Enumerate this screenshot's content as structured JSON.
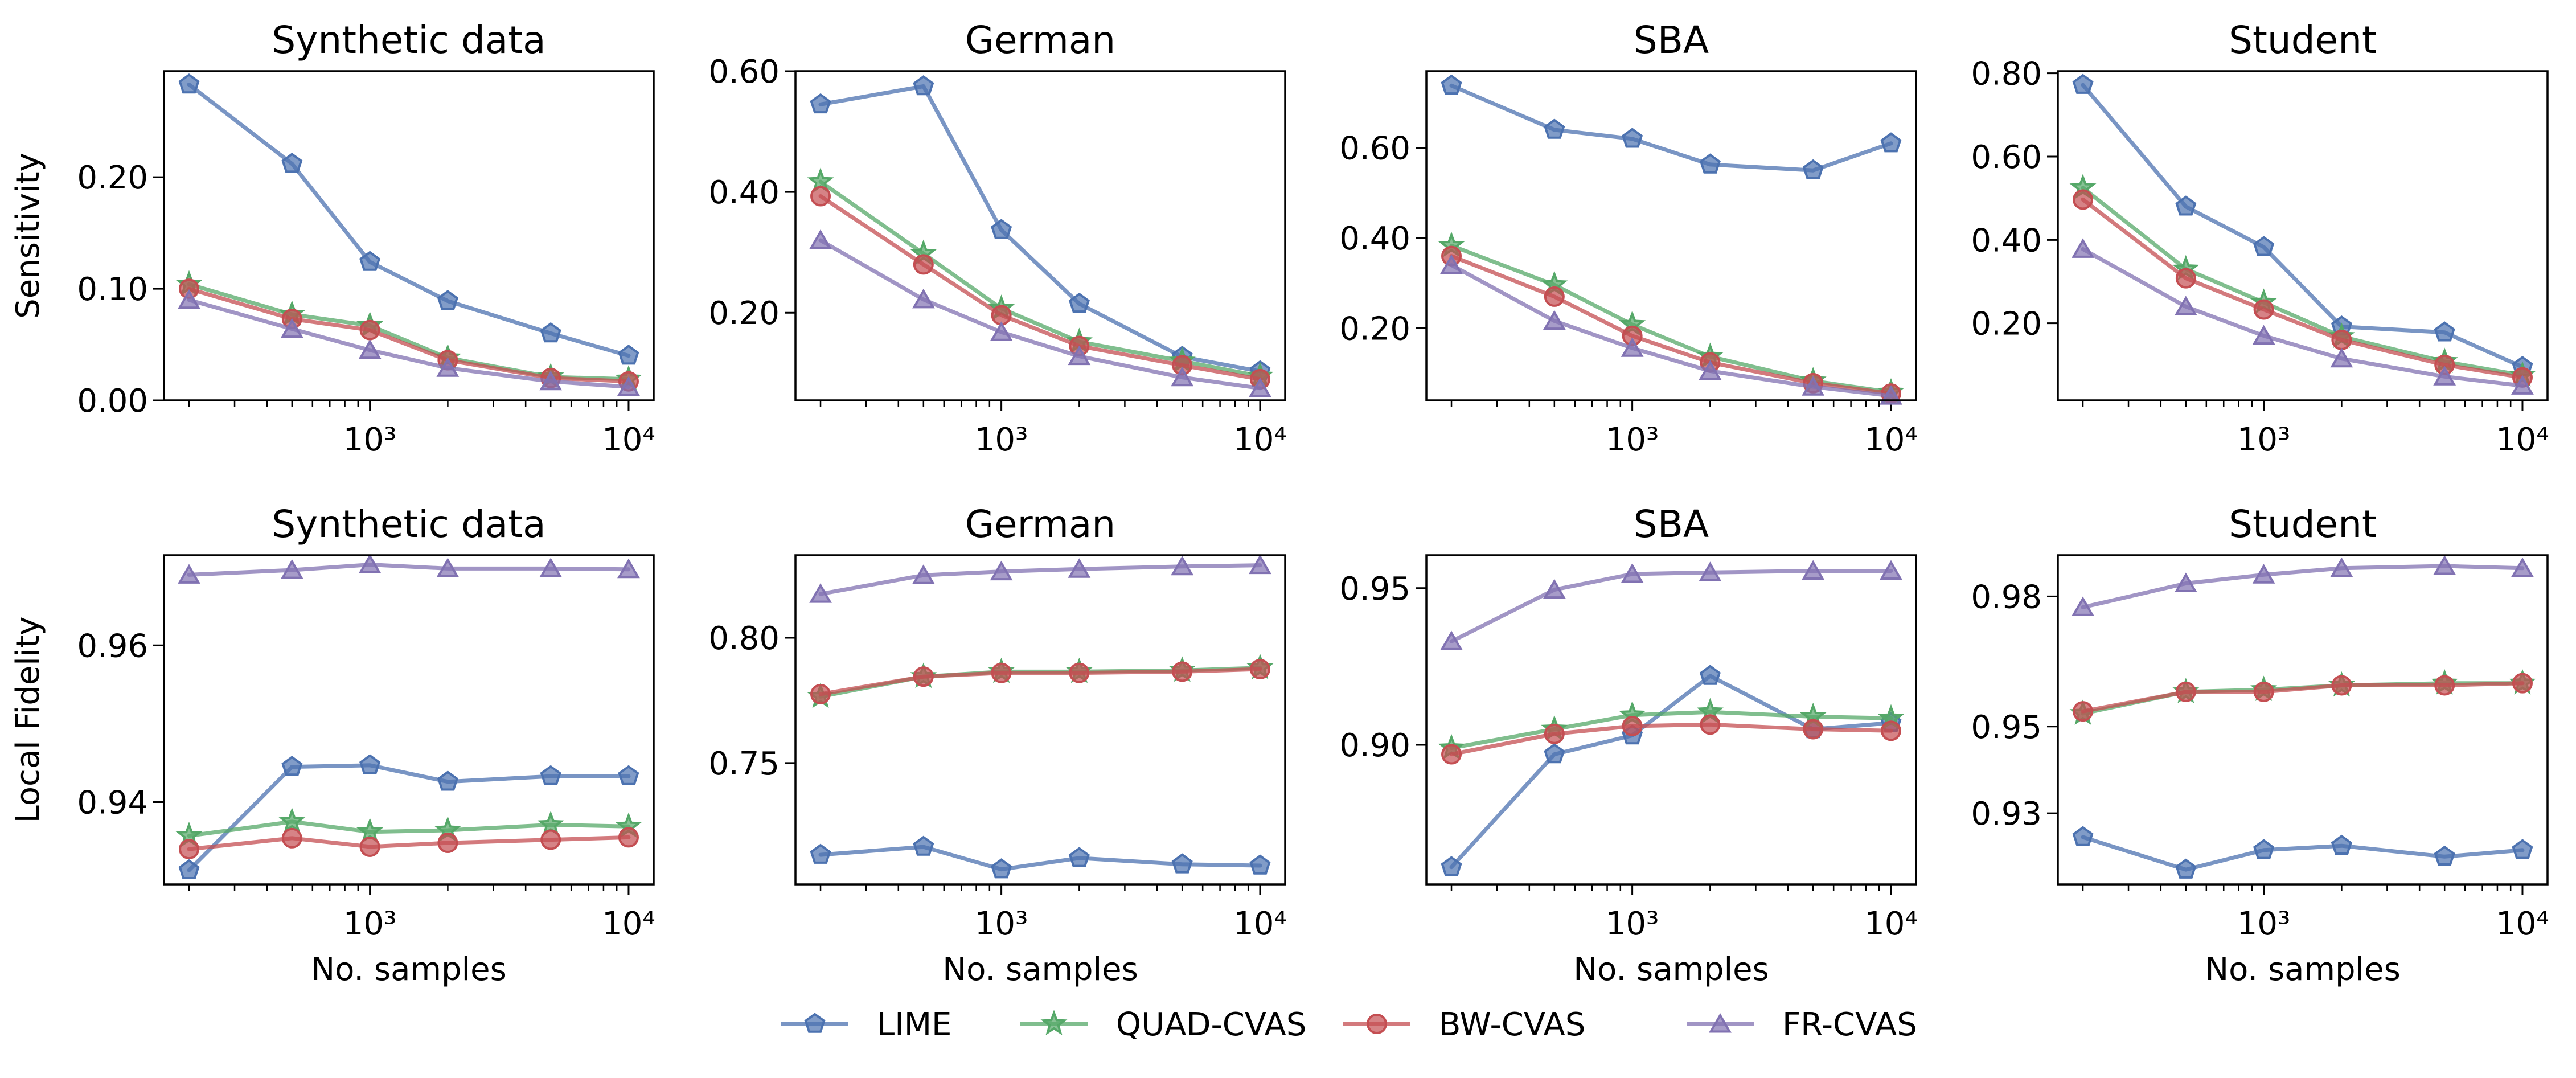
{
  "legend": {
    "entries": [
      {
        "name": "LIME",
        "color": "#4C72B0",
        "marker": "pentagon"
      },
      {
        "name": "QUAD-CVAS",
        "color": "#55A868",
        "marker": "star"
      },
      {
        "name": "BW-CVAS",
        "color": "#C44E52",
        "marker": "circle"
      },
      {
        "name": "FR-CVAS",
        "color": "#8172B2",
        "marker": "triangle"
      }
    ]
  },
  "chart_data": [
    {
      "type": "line",
      "title": "Synthetic data",
      "ylabel": "Sensitivity",
      "xlabel": "",
      "xscale": "log",
      "x": [
        200,
        500,
        1000,
        2000,
        5000,
        10000
      ],
      "xlim": [
        160,
        12500
      ],
      "ylim": [
        0.0,
        0.295
      ],
      "yticks": [
        0.0,
        0.1,
        0.2
      ],
      "ytick_labels": [
        "0.00",
        "0.10",
        "0.20"
      ],
      "xticks": [
        1000,
        10000
      ],
      "xtick_labels": [
        "10³",
        "10⁴"
      ],
      "series": [
        {
          "name": "LIME",
          "values": [
            0.283,
            0.212,
            0.124,
            0.089,
            0.06,
            0.04
          ]
        },
        {
          "name": "QUAD-CVAS",
          "values": [
            0.104,
            0.077,
            0.067,
            0.038,
            0.021,
            0.019
          ]
        },
        {
          "name": "BW-CVAS",
          "values": [
            0.1,
            0.073,
            0.063,
            0.036,
            0.02,
            0.017
          ]
        },
        {
          "name": "FR-CVAS",
          "values": [
            0.09,
            0.064,
            0.045,
            0.029,
            0.017,
            0.012
          ]
        }
      ]
    },
    {
      "type": "line",
      "title": "German",
      "ylabel": "",
      "xlabel": "",
      "xscale": "log",
      "x": [
        200,
        500,
        1000,
        2000,
        5000,
        10000
      ],
      "xlim": [
        160,
        12500
      ],
      "ylim": [
        0.055,
        0.6
      ],
      "yticks": [
        0.2,
        0.4,
        0.6
      ],
      "ytick_labels": [
        "0.20",
        "0.40",
        "0.60"
      ],
      "xticks": [
        1000,
        10000
      ],
      "xtick_labels": [
        "10³",
        "10⁴"
      ],
      "series": [
        {
          "name": "LIME",
          "values": [
            0.545,
            0.575,
            0.337,
            0.215,
            0.127,
            0.103
          ]
        },
        {
          "name": "QUAD-CVAS",
          "values": [
            0.417,
            0.298,
            0.207,
            0.152,
            0.12,
            0.095
          ]
        },
        {
          "name": "BW-CVAS",
          "values": [
            0.393,
            0.28,
            0.196,
            0.145,
            0.113,
            0.09
          ]
        },
        {
          "name": "FR-CVAS",
          "values": [
            0.32,
            0.222,
            0.168,
            0.128,
            0.093,
            0.075
          ]
        }
      ]
    },
    {
      "type": "line",
      "title": "SBA",
      "ylabel": "",
      "xlabel": "",
      "xscale": "log",
      "x": [
        200,
        500,
        1000,
        2000,
        5000,
        10000
      ],
      "xlim": [
        160,
        12500
      ],
      "ylim": [
        0.04,
        0.77
      ],
      "yticks": [
        0.2,
        0.4,
        0.6
      ],
      "ytick_labels": [
        "0.20",
        "0.40",
        "0.60"
      ],
      "xticks": [
        1000,
        10000
      ],
      "xtick_labels": [
        "10³",
        "10⁴"
      ],
      "series": [
        {
          "name": "LIME",
          "values": [
            0.738,
            0.64,
            0.62,
            0.563,
            0.55,
            0.61
          ]
        },
        {
          "name": "QUAD-CVAS",
          "values": [
            0.383,
            0.296,
            0.208,
            0.137,
            0.083,
            0.058
          ]
        },
        {
          "name": "BW-CVAS",
          "values": [
            0.36,
            0.27,
            0.183,
            0.124,
            0.078,
            0.055
          ]
        },
        {
          "name": "FR-CVAS",
          "values": [
            0.34,
            0.216,
            0.156,
            0.105,
            0.07,
            0.05
          ]
        }
      ]
    },
    {
      "type": "line",
      "title": "Student",
      "ylabel": "",
      "xlabel": "",
      "xscale": "log",
      "x": [
        200,
        500,
        1000,
        2000,
        5000,
        10000
      ],
      "xlim": [
        160,
        12500
      ],
      "ylim": [
        0.015,
        0.805
      ],
      "yticks": [
        0.2,
        0.4,
        0.6,
        0.8
      ],
      "ytick_labels": [
        "0.20",
        "0.40",
        "0.60",
        "0.80"
      ],
      "xticks": [
        1000,
        10000
      ],
      "xtick_labels": [
        "10³",
        "10⁴"
      ],
      "series": [
        {
          "name": "LIME",
          "values": [
            0.772,
            0.48,
            0.383,
            0.192,
            0.178,
            0.095
          ]
        },
        {
          "name": "QUAD-CVAS",
          "values": [
            0.525,
            0.33,
            0.25,
            0.168,
            0.108,
            0.075
          ]
        },
        {
          "name": "BW-CVAS",
          "values": [
            0.497,
            0.308,
            0.233,
            0.16,
            0.1,
            0.07
          ]
        },
        {
          "name": "FR-CVAS",
          "values": [
            0.378,
            0.24,
            0.17,
            0.115,
            0.072,
            0.05
          ]
        }
      ]
    },
    {
      "type": "line",
      "title": "Synthetic data",
      "ylabel": "Local Fidelity",
      "xlabel": "No. samples",
      "xscale": "log",
      "x": [
        200,
        500,
        1000,
        2000,
        5000,
        10000
      ],
      "xlim": [
        160,
        12500
      ],
      "ylim": [
        0.9295,
        0.9715
      ],
      "yticks": [
        0.94,
        0.96
      ],
      "ytick_labels": [
        "0.94",
        "0.96"
      ],
      "xticks": [
        1000,
        10000
      ],
      "xtick_labels": [
        "10³",
        "10⁴"
      ],
      "series": [
        {
          "name": "LIME",
          "values": [
            0.9313,
            0.9445,
            0.9447,
            0.9426,
            0.9433,
            0.9433
          ]
        },
        {
          "name": "QUAD-CVAS",
          "values": [
            0.9357,
            0.9375,
            0.9362,
            0.9364,
            0.9371,
            0.9369
          ]
        },
        {
          "name": "BW-CVAS",
          "values": [
            0.934,
            0.9354,
            0.9343,
            0.9348,
            0.9352,
            0.9355
          ]
        },
        {
          "name": "FR-CVAS",
          "values": [
            0.969,
            0.9696,
            0.9703,
            0.9698,
            0.9698,
            0.9697
          ]
        }
      ]
    },
    {
      "type": "line",
      "title": "German",
      "ylabel": "",
      "xlabel": "No. samples",
      "xscale": "log",
      "x": [
        200,
        500,
        1000,
        2000,
        5000,
        10000
      ],
      "xlim": [
        160,
        12500
      ],
      "ylim": [
        0.7015,
        0.833
      ],
      "yticks": [
        0.75,
        0.8
      ],
      "ytick_labels": [
        "0.75",
        "0.80"
      ],
      "xticks": [
        1000,
        10000
      ],
      "xtick_labels": [
        "10³",
        "10⁴"
      ],
      "series": [
        {
          "name": "LIME",
          "values": [
            0.7133,
            0.7165,
            0.7075,
            0.712,
            0.7095,
            0.709
          ]
        },
        {
          "name": "QUAD-CVAS",
          "values": [
            0.7765,
            0.7845,
            0.7865,
            0.7865,
            0.787,
            0.788
          ]
        },
        {
          "name": "BW-CVAS",
          "values": [
            0.7775,
            0.7845,
            0.786,
            0.786,
            0.7865,
            0.7875
          ]
        },
        {
          "name": "FR-CVAS",
          "values": [
            0.8175,
            0.825,
            0.8265,
            0.8275,
            0.8285,
            0.829
          ]
        }
      ]
    },
    {
      "type": "line",
      "title": "SBA",
      "ylabel": "",
      "xlabel": "No. samples",
      "xscale": "log",
      "x": [
        200,
        500,
        1000,
        2000,
        5000,
        10000
      ],
      "xlim": [
        160,
        12500
      ],
      "ylim": [
        0.8555,
        0.9605
      ],
      "yticks": [
        0.9,
        0.95
      ],
      "ytick_labels": [
        "0.90",
        "0.95"
      ],
      "xticks": [
        1000,
        10000
      ],
      "xtick_labels": [
        "10³",
        "10⁴"
      ],
      "series": [
        {
          "name": "LIME",
          "values": [
            0.861,
            0.897,
            0.903,
            0.922,
            0.905,
            0.907
          ]
        },
        {
          "name": "QUAD-CVAS",
          "values": [
            0.899,
            0.905,
            0.9095,
            0.9105,
            0.909,
            0.9085
          ]
        },
        {
          "name": "BW-CVAS",
          "values": [
            0.897,
            0.9035,
            0.906,
            0.9065,
            0.905,
            0.9045
          ]
        },
        {
          "name": "FR-CVAS",
          "values": [
            0.933,
            0.9495,
            0.9545,
            0.955,
            0.9555,
            0.9555
          ]
        }
      ]
    },
    {
      "type": "line",
      "title": "Student",
      "ylabel": "",
      "xlabel": "No. samples",
      "xscale": "log",
      "x": [
        200,
        500,
        1000,
        2000,
        5000,
        10000
      ],
      "xlim": [
        160,
        12500
      ],
      "ylim": [
        0.9136,
        0.9895
      ],
      "yticks": [
        0.93,
        0.95,
        0.98
      ],
      "ytick_labels": [
        "0.93",
        "0.95",
        "0.98"
      ],
      "xticks": [
        1000,
        10000
      ],
      "xtick_labels": [
        "10³",
        "10⁴"
      ],
      "series": [
        {
          "name": "LIME",
          "values": [
            0.9245,
            0.917,
            0.9215,
            0.9225,
            0.92,
            0.9215
          ]
        },
        {
          "name": "QUAD-CVAS",
          "values": [
            0.953,
            0.958,
            0.9585,
            0.9595,
            0.96,
            0.96
          ]
        },
        {
          "name": "BW-CVAS",
          "values": [
            0.9535,
            0.958,
            0.958,
            0.9595,
            0.9595,
            0.96
          ]
        },
        {
          "name": "FR-CVAS",
          "values": [
            0.9775,
            0.983,
            0.985,
            0.9865,
            0.987,
            0.9865
          ]
        }
      ]
    }
  ]
}
